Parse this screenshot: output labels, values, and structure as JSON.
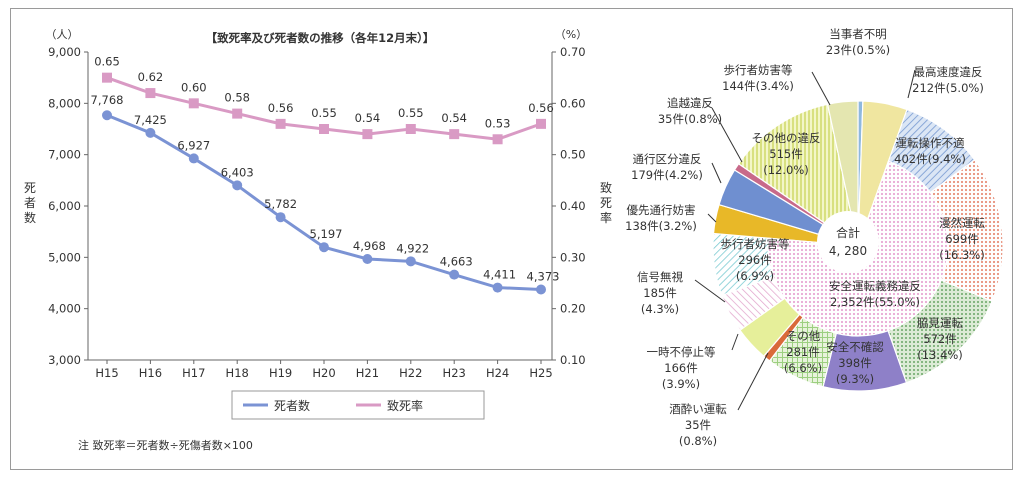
{
  "chart_data": [
    {
      "type": "line",
      "title": "【致死率及び死者数の推移（各年12月末）】",
      "y_left_unit": "（人）",
      "y_right_unit": "（%）",
      "ylabel_left": "死者数",
      "ylabel_right": "致死率",
      "categories": [
        "H15",
        "H16",
        "H17",
        "H18",
        "H19",
        "H20",
        "H21",
        "H22",
        "H23",
        "H24",
        "H25"
      ],
      "y_left_ticks": [
        "9,000",
        "8,000",
        "7,000",
        "6,000",
        "5,000",
        "4,000",
        "3,000"
      ],
      "y_right_ticks": [
        "0.70",
        "0.60",
        "0.50",
        "0.40",
        "0.30",
        "0.20",
        "0.10"
      ],
      "ylim_left": [
        3000,
        9000
      ],
      "ylim_right": [
        0.1,
        0.7
      ],
      "series": [
        {
          "name": "死者数",
          "axis": "left",
          "color": "#7b93d4",
          "values": [
            7768,
            7425,
            6927,
            6403,
            5782,
            5197,
            4968,
            4922,
            4663,
            4411,
            4373
          ],
          "labels": [
            "7,768",
            "7,425",
            "6,927",
            "6,403",
            "5,782",
            "5,197",
            "4,968",
            "4,922",
            "4,663",
            "4,411",
            "4,373"
          ]
        },
        {
          "name": "致死率",
          "axis": "right",
          "color": "#d99ac4",
          "values": [
            0.65,
            0.62,
            0.6,
            0.58,
            0.56,
            0.55,
            0.54,
            0.55,
            0.54,
            0.53,
            0.56
          ],
          "labels": [
            "0.65",
            "0.62",
            "0.60",
            "0.58",
            "0.56",
            "0.55",
            "0.54",
            "0.55",
            "0.54",
            "0.53",
            "0.56"
          ]
        }
      ],
      "note": "注 致死率＝死者数÷死傷者数×100"
    },
    {
      "type": "pie",
      "center_label": [
        "合計",
        "4, 280"
      ],
      "total": 4280,
      "slices": [
        {
          "name": "当事者不明",
          "value": 23,
          "count": "23件",
          "pct": "(0.5%)",
          "color": "#8fb8de"
        },
        {
          "name": "最高速度違反",
          "value": 212,
          "count": "212件",
          "pct": "(5.0%)",
          "color": "#f0e6a0"
        },
        {
          "name": "運転操作不適",
          "value": 402,
          "count": "402件",
          "pct": "(9.4%)",
          "color": "#aec6e8"
        },
        {
          "name": "漫然運転",
          "value": 699,
          "count": "699件",
          "pct": "(16.3%)",
          "color": "#e8907a"
        },
        {
          "name": "脇見運転",
          "value": 572,
          "count": "572件",
          "pct": "(13.4%)",
          "color": "#8fbf8a"
        },
        {
          "name": "安全不確認",
          "value": 398,
          "count": "398件",
          "pct": "(9.3%)",
          "color": "#8e80c8"
        },
        {
          "name": "その他",
          "value": 281,
          "count": "281件",
          "pct": "(6.6%)",
          "color": "#9ccf80"
        },
        {
          "name": "酒酔い運転",
          "value": 35,
          "count": "35件",
          "pct": "(0.8%)",
          "color": "#d96a3a"
        },
        {
          "name": "一時不停止等",
          "value": 166,
          "count": "166件",
          "pct": "(3.9%)",
          "color": "#e6ef9a"
        },
        {
          "name": "信号無視",
          "value": 185,
          "count": "185件",
          "pct": "(4.3%)",
          "color": "#e6b8d2"
        },
        {
          "name": "歩行者妨害等",
          "value": 296,
          "count": "296件",
          "pct": "(6.9%)",
          "color": "#9fd8dc"
        },
        {
          "name": "優先通行妨害",
          "value": 138,
          "count": "138件",
          "pct": "(3.2%)",
          "color": "#e8b828"
        },
        {
          "name": "通行区分違反",
          "value": 179,
          "count": "179件",
          "pct": "(4.2%)",
          "color": "#6f8fd0"
        },
        {
          "name": "追越違反",
          "value": 35,
          "count": "35件",
          "pct": "(0.8%)",
          "color": "#c86a8a"
        },
        {
          "name": "その他の違反",
          "value": 515,
          "count": "515件",
          "pct": "(12.0%)",
          "color": "#d9e87a"
        },
        {
          "name": "歩行者妨害等",
          "value": 144,
          "count": "144件",
          "pct": "(3.4%)",
          "color": "#e2e2a8"
        }
      ],
      "inner_slice": {
        "name": "安全運転義務違反",
        "value": 2352,
        "count": "2,352件",
        "pct": "(55.0%)",
        "color": "#f2c4e2"
      }
    }
  ]
}
